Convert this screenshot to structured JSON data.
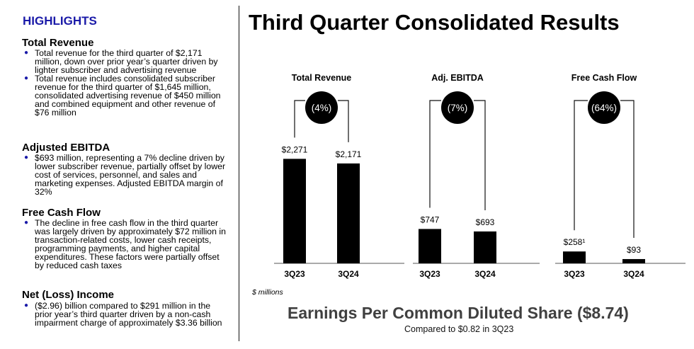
{
  "highlights": {
    "heading": "HIGHLIGHTS",
    "sections": [
      {
        "title": "Total Revenue",
        "bullets": [
          "Total revenue for the third quarter of $2,171 million, down over prior year’s quarter driven by lighter subscriber and advertising revenue",
          "Total revenue includes consolidated subscriber revenue for the third quarter of $1,645 million, consolidated advertising revenue of $450 million and combined equipment and other revenue of $76 million"
        ]
      },
      {
        "title": "Adjusted EBITDA",
        "bullets": [
          "$693 million, representing a 7% decline driven by lower subscriber revenue, partially offset by lower cost of services, personnel, and sales and marketing expenses. Adjusted EBITDA margin of 32%"
        ]
      },
      {
        "title": "Free Cash Flow",
        "bullets": [
          "The decline in free cash flow in the third quarter was largely driven by approximately $72 million in transaction-related costs, lower cash receipts, programming payments, and higher capital expenditures. These factors were partially offset by reduced cash taxes"
        ]
      },
      {
        "title": "Net (Loss) Income",
        "bullets": [
          "($2.96) billion compared to $291 million in the prior year’s third quarter driven by a non-cash impairment charge of approximately $3.36 billion"
        ]
      }
    ]
  },
  "main": {
    "title": "Third Quarter Consolidated Results",
    "unit_note": "$ millions",
    "eps_title": "Earnings Per Common Diluted Share ($8.74)",
    "eps_sub": "Compared to $0.82 in 3Q23"
  },
  "chart_data": [
    {
      "type": "bar",
      "title": "Total Revenue",
      "categories": [
        "3Q23",
        "3Q24"
      ],
      "values": [
        2271,
        2171
      ],
      "data_labels": [
        "$2,271",
        "$2,171"
      ],
      "change_label": "(4%)"
    },
    {
      "type": "bar",
      "title": "Adj. EBITDA",
      "categories": [
        "3Q23",
        "3Q24"
      ],
      "values": [
        747,
        693
      ],
      "data_labels": [
        "$747",
        "$693"
      ],
      "change_label": "(7%)"
    },
    {
      "type": "bar",
      "title": "Free Cash Flow",
      "categories": [
        "3Q23",
        "3Q24"
      ],
      "values": [
        258,
        93
      ],
      "data_labels": [
        "$258¹",
        "$93"
      ],
      "change_label": "(64%)"
    }
  ],
  "colors": {
    "accent": "#1a1aa8",
    "bar": "#000000",
    "eps": "#404040"
  }
}
